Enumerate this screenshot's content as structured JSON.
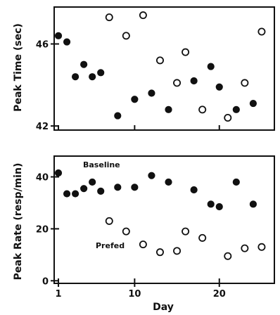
{
  "chart_data": [
    {
      "type": "scatter",
      "title": "",
      "ylabel": "Peak Time (sec)",
      "xlabel": "",
      "xlim": [
        0.5,
        26.5
      ],
      "ylim": [
        41.8,
        47.8
      ],
      "yticks": [
        42,
        46
      ],
      "xticks": [
        1,
        10,
        20
      ],
      "series": [
        {
          "marker": "filled",
          "points": [
            [
              1,
              46.4
            ],
            [
              2,
              46.1
            ],
            [
              3,
              44.4
            ],
            [
              4,
              45.0
            ],
            [
              5,
              44.4
            ],
            [
              6,
              44.6
            ],
            [
              8,
              42.5
            ],
            [
              10,
              43.3
            ],
            [
              12,
              43.6
            ],
            [
              14,
              42.8
            ],
            [
              17,
              44.2
            ],
            [
              19,
              44.9
            ],
            [
              20,
              43.9
            ],
            [
              22,
              42.8
            ],
            [
              24,
              43.1
            ]
          ]
        },
        {
          "marker": "open",
          "points": [
            [
              7,
              47.3
            ],
            [
              9,
              46.4
            ],
            [
              11,
              47.4
            ],
            [
              13,
              45.2
            ],
            [
              15,
              44.1
            ],
            [
              16,
              45.6
            ],
            [
              18,
              42.8
            ],
            [
              21,
              42.4
            ],
            [
              23,
              44.1
            ],
            [
              25,
              46.6
            ]
          ]
        }
      ]
    },
    {
      "type": "scatter",
      "title": "",
      "ylabel": "Peak Rate (resp/min)",
      "xlabel": "Day",
      "xlim": [
        0.5,
        26.5
      ],
      "ylim": [
        -1,
        48
      ],
      "yticks": [
        0,
        20,
        40
      ],
      "xticks": [
        1,
        10,
        20
      ],
      "annotations": [
        "Baseline",
        "Prefed"
      ],
      "series": [
        {
          "name": "Baseline",
          "marker": "filled",
          "points": [
            [
              1,
              41.5
            ],
            [
              2,
              33.5
            ],
            [
              3,
              33.5
            ],
            [
              4,
              35.5
            ],
            [
              5,
              38.0
            ],
            [
              6,
              34.5
            ],
            [
              8,
              36.0
            ],
            [
              10,
              36.0
            ],
            [
              12,
              40.5
            ],
            [
              14,
              38.0
            ],
            [
              17,
              35.0
            ],
            [
              19,
              29.5
            ],
            [
              20,
              28.5
            ],
            [
              22,
              38.0
            ],
            [
              24,
              29.5
            ]
          ]
        },
        {
          "name": "Prefed",
          "marker": "open",
          "points": [
            [
              7,
              23.0
            ],
            [
              9,
              19.0
            ],
            [
              11,
              14.0
            ],
            [
              13,
              11.0
            ],
            [
              15,
              11.5
            ],
            [
              16,
              19.0
            ],
            [
              18,
              16.5
            ],
            [
              21,
              9.5
            ],
            [
              23,
              12.5
            ],
            [
              25,
              13.0
            ]
          ]
        }
      ]
    }
  ]
}
